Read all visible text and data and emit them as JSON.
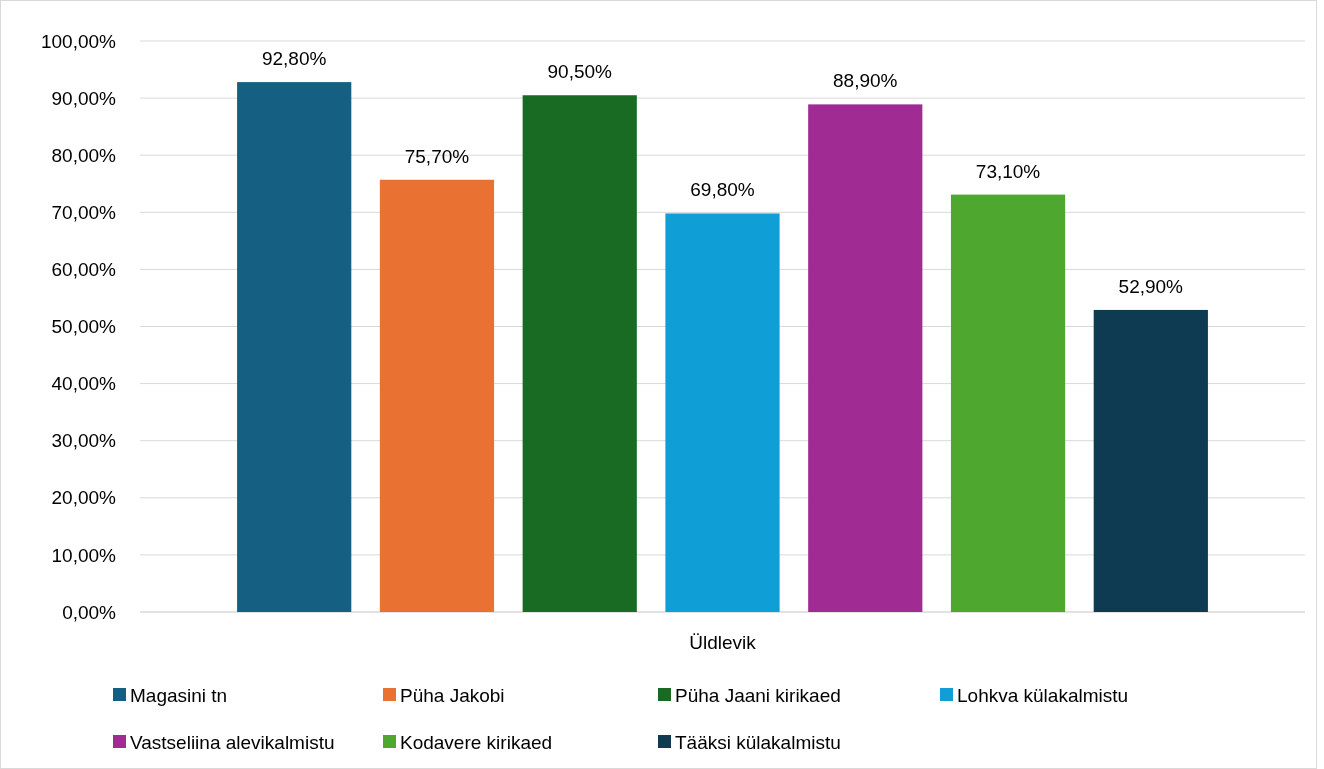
{
  "chart_data": {
    "type": "bar",
    "categories": [
      "Üldlevik"
    ],
    "series": [
      {
        "name": "Magasini tn",
        "color": "#156082",
        "values": [
          92.8
        ],
        "value_labels": [
          "92,80%"
        ]
      },
      {
        "name": "Püha Jakobi",
        "color": "#e97132",
        "values": [
          75.7
        ],
        "value_labels": [
          "75,70%"
        ]
      },
      {
        "name": "Püha Jaani kirikaed",
        "color": "#196b24",
        "values": [
          90.5
        ],
        "value_labels": [
          "90,50%"
        ]
      },
      {
        "name": "Lohkva külakalmistu",
        "color": "#0f9ed5",
        "values": [
          69.8
        ],
        "value_labels": [
          "69,80%"
        ]
      },
      {
        "name": "Vastseliina alevikalmistu",
        "color": "#a02b93",
        "values": [
          88.9
        ],
        "value_labels": [
          "88,90%"
        ]
      },
      {
        "name": "Kodavere kirikaed",
        "color": "#4ea72e",
        "values": [
          73.1
        ],
        "value_labels": [
          "73,10%"
        ]
      },
      {
        "name": "Tääksi külakalmistu",
        "color": "#0e3a52",
        "values": [
          52.9
        ],
        "value_labels": [
          "52,90%"
        ]
      }
    ],
    "ylim": [
      0,
      100
    ],
    "yticks": [
      {
        "value": 0,
        "label": "0,00%"
      },
      {
        "value": 10,
        "label": "10,00%"
      },
      {
        "value": 20,
        "label": "20,00%"
      },
      {
        "value": 30,
        "label": "30,00%"
      },
      {
        "value": 40,
        "label": "40,00%"
      },
      {
        "value": 50,
        "label": "50,00%"
      },
      {
        "value": 60,
        "label": "60,00%"
      },
      {
        "value": 70,
        "label": "70,00%"
      },
      {
        "value": 80,
        "label": "80,00%"
      },
      {
        "value": 90,
        "label": "90,00%"
      },
      {
        "value": 100,
        "label": "100,00%"
      }
    ],
    "grid": true,
    "legend": "bottom"
  }
}
